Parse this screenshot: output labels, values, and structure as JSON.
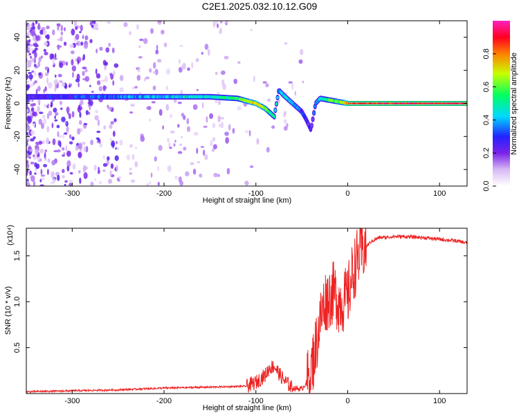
{
  "title": "C2E1.2025.032.10.12.G09",
  "colors": {
    "snr_line": "#ee2222",
    "spectrum_noise": "#6a1fd6",
    "axes": "#000000"
  },
  "chart_data": [
    {
      "type": "heatmap",
      "xlabel": "Height of straight line (km)",
      "ylabel": "Frequency (Hz)",
      "xlim": [
        -350,
        130
      ],
      "ylim": [
        -50,
        50
      ],
      "x_ticks": [
        -300,
        -200,
        -100,
        0,
        100
      ],
      "y_ticks": [
        -40,
        -20,
        0,
        20,
        40
      ],
      "colorbar": {
        "label": "Normalized spectral amplitude",
        "range": [
          0,
          1
        ],
        "ticks": [
          "0.0",
          "0.2",
          "0.4",
          "0.6",
          "0.8"
        ],
        "colormap": "white-purple-blue-cyan-green-yellow-red-magenta"
      },
      "ridge": {
        "x": [
          -350,
          -300,
          -250,
          -200,
          -150,
          -120,
          -100,
          -90,
          -80,
          -75,
          -70,
          -60,
          -50,
          -45,
          -40,
          -35,
          -30,
          -20,
          -10,
          0,
          10,
          50,
          100,
          130
        ],
        "y": [
          4,
          4,
          4,
          4,
          4,
          3,
          0,
          -3,
          -8,
          8,
          5,
          0,
          -5,
          -10,
          -16,
          0,
          3,
          2,
          1,
          0,
          0,
          0,
          0,
          0
        ],
        "amplitude": [
          0.25,
          0.3,
          0.35,
          0.4,
          0.45,
          0.55,
          0.75,
          0.6,
          0.5,
          0.4,
          0.45,
          0.4,
          0.3,
          0.25,
          0.2,
          0.35,
          0.45,
          0.55,
          0.6,
          0.8,
          0.85,
          0.9,
          0.9,
          0.9
        ]
      }
    },
    {
      "type": "line",
      "xlabel": "Height of straight line (km)",
      "ylabel": "SNR (10 * v/v)",
      "multiplier": "(x10⁴)",
      "xlim": [
        -350,
        130
      ],
      "ylim": [
        0,
        1.8
      ],
      "x_ticks": [
        -300,
        -200,
        -100,
        0,
        100
      ],
      "y_ticks": [
        0.5,
        1.0,
        1.5
      ],
      "series": [
        {
          "x": [
            -350,
            -300,
            -250,
            -200,
            -150,
            -110,
            -100,
            -90,
            -85,
            -80,
            -75,
            -70,
            -60,
            -50,
            -45,
            -40,
            -35,
            -30,
            -25,
            -20,
            -15,
            -10,
            -5,
            0,
            5,
            10,
            15,
            20,
            25,
            30,
            35,
            40,
            50,
            60,
            80,
            100,
            120,
            130
          ],
          "y": [
            0.02,
            0.03,
            0.04,
            0.06,
            0.07,
            0.08,
            0.12,
            0.2,
            0.28,
            0.3,
            0.22,
            0.15,
            0.06,
            0.05,
            0.12,
            0.25,
            0.5,
            0.8,
            1.0,
            1.05,
            1.1,
            1.0,
            1.0,
            1.05,
            1.3,
            1.45,
            1.55,
            1.6,
            1.65,
            1.68,
            1.7,
            1.7,
            1.71,
            1.71,
            1.7,
            1.68,
            1.66,
            1.64
          ]
        }
      ]
    }
  ]
}
